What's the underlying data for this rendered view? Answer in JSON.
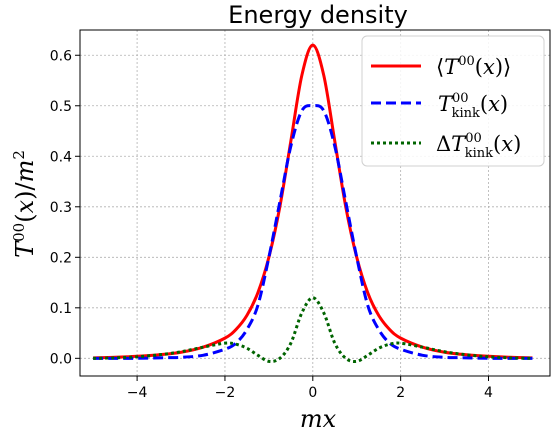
{
  "chart_data": {
    "type": "line",
    "title": "Energy density",
    "xlabel": "mx",
    "ylabel": "T00(x)/m2",
    "xlim": [
      -5.3,
      5.4
    ],
    "ylim": [
      -0.035,
      0.65
    ],
    "grid": true,
    "legend_position": "top-right",
    "xticks": [
      -4,
      -2,
      0,
      2,
      4
    ],
    "xtick_labels": [
      "−4",
      "−2",
      "0",
      "2",
      "4"
    ],
    "yticks": [
      0.0,
      0.1,
      0.2,
      0.3,
      0.4,
      0.5,
      0.6
    ],
    "ytick_labels": [
      "0.0",
      "0.1",
      "0.2",
      "0.3",
      "0.4",
      "0.5",
      "0.6"
    ],
    "x": [
      -5,
      -4.5,
      -4,
      -3.5,
      -3,
      -2.5,
      -2,
      -1.75,
      -1.5,
      -1.25,
      -1,
      -0.75,
      -0.5,
      -0.25,
      0,
      0.25,
      0.5,
      0.75,
      1,
      1.25,
      1.5,
      1.75,
      2,
      2.5,
      3,
      3.5,
      4,
      4.5,
      5
    ],
    "series": [
      {
        "name": "⟨T00(x)⟩",
        "color": "#ff0000",
        "style": "solid",
        "values": [
          0.001,
          0.002,
          0.004,
          0.007,
          0.012,
          0.022,
          0.04,
          0.057,
          0.085,
          0.13,
          0.2,
          0.3,
          0.43,
          0.56,
          0.62,
          0.56,
          0.43,
          0.3,
          0.2,
          0.13,
          0.085,
          0.057,
          0.04,
          0.022,
          0.012,
          0.007,
          0.004,
          0.002,
          0.001
        ]
      },
      {
        "name": "T00kink(x)",
        "color": "#0000ff",
        "style": "dashed",
        "values": [
          0.0,
          0.0,
          0.0,
          0.001,
          0.002,
          0.006,
          0.018,
          0.03,
          0.057,
          0.105,
          0.2,
          0.31,
          0.42,
          0.49,
          0.5,
          0.49,
          0.42,
          0.31,
          0.2,
          0.105,
          0.057,
          0.03,
          0.018,
          0.006,
          0.002,
          0.001,
          0.0,
          0.0,
          0.0
        ]
      },
      {
        "name": "ΔT00kink(x)",
        "color": "#006400",
        "style": "dotted",
        "values": [
          0.0,
          0.001,
          0.003,
          0.007,
          0.013,
          0.022,
          0.03,
          0.028,
          0.02,
          0.006,
          -0.006,
          0.0,
          0.03,
          0.09,
          0.12,
          0.09,
          0.03,
          0.0,
          -0.006,
          0.006,
          0.02,
          0.028,
          0.03,
          0.022,
          0.013,
          0.007,
          0.003,
          0.001,
          0.0
        ]
      }
    ]
  }
}
